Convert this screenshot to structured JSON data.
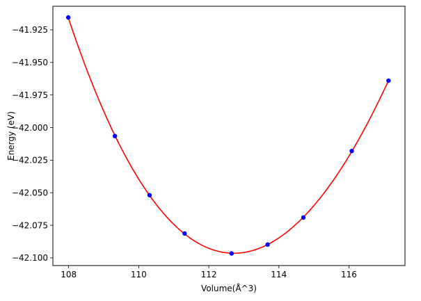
{
  "chart_data": {
    "type": "scatter",
    "title": "",
    "xlabel": "Volume(Å^3)",
    "ylabel": "Energy (eV)",
    "xlim": [
      107.55,
      117.6
    ],
    "ylim": [
      -42.1059,
      -41.9069
    ],
    "xticks": [
      108,
      110,
      112,
      114,
      116
    ],
    "xtick_labels": [
      "108",
      "110",
      "112",
      "114",
      "116"
    ],
    "yticks": [
      -42.1,
      -42.075,
      -42.05,
      -42.025,
      -42.0,
      -41.975,
      -41.95,
      -41.925
    ],
    "ytick_labels": [
      "−42.100",
      "−42.075",
      "−42.050",
      "−42.025",
      "−42.000",
      "−41.975",
      "−41.950",
      "−41.925"
    ],
    "grid": false,
    "legend": "none",
    "series": [
      {
        "kind": "scatter",
        "color": "#0000ff",
        "marker": "circle",
        "x": [
          107.99,
          109.32,
          110.31,
          111.31,
          112.65,
          113.68,
          114.7,
          116.08,
          117.13
        ],
        "y": [
          -41.9155,
          -42.0065,
          -42.0519,
          -42.0813,
          -42.0966,
          -42.0898,
          -42.069,
          -42.018,
          -41.964
        ]
      },
      {
        "kind": "fit-curve",
        "color": "#ff0000",
        "x_range": [
          107.99,
          117.13
        ],
        "fit": {
          "form": "quartic-poly-in-volume",
          "x": [
            107.99,
            109.32,
            110.31,
            111.31,
            112.65,
            113.68,
            114.7,
            116.08,
            117.13
          ],
          "y": [
            -41.9155,
            -42.0065,
            -42.0519,
            -42.0813,
            -42.0966,
            -42.0898,
            -42.069,
            -42.018,
            -41.964
          ]
        }
      }
    ]
  }
}
